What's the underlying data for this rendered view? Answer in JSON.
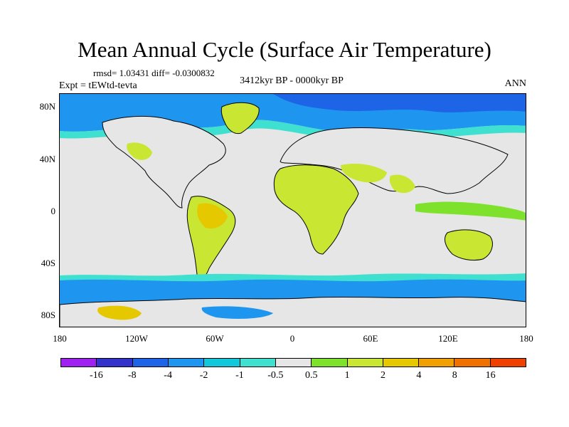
{
  "title": "Mean Annual Cycle (Surface Air Temperature)",
  "stats_text": "rmsd= 1.03431 diff= -0.0300832",
  "period_text": "3412kyr BP - 0000kyr BP",
  "expt_text": "Expt = tEWtd-tevta",
  "season": "ANN",
  "y_labels": [
    "80N",
    "40N",
    "0",
    "40S",
    "80S"
  ],
  "x_labels": [
    "180",
    "120W",
    "60W",
    "0",
    "60E",
    "120E",
    "180"
  ],
  "colorbar": {
    "colors": [
      "#a020f0",
      "#3333cc",
      "#1e64e6",
      "#1e96f0",
      "#14c8dc",
      "#40e0d0",
      "#e6e6e6",
      "#7ee22c",
      "#c8e632",
      "#e6c800",
      "#f0a000",
      "#f07000",
      "#f04000"
    ],
    "labels": [
      "-16",
      "-8",
      "-4",
      "-2",
      "-1",
      "-0.5",
      "0.5",
      "1",
      "2",
      "4",
      "8",
      "16"
    ]
  }
}
